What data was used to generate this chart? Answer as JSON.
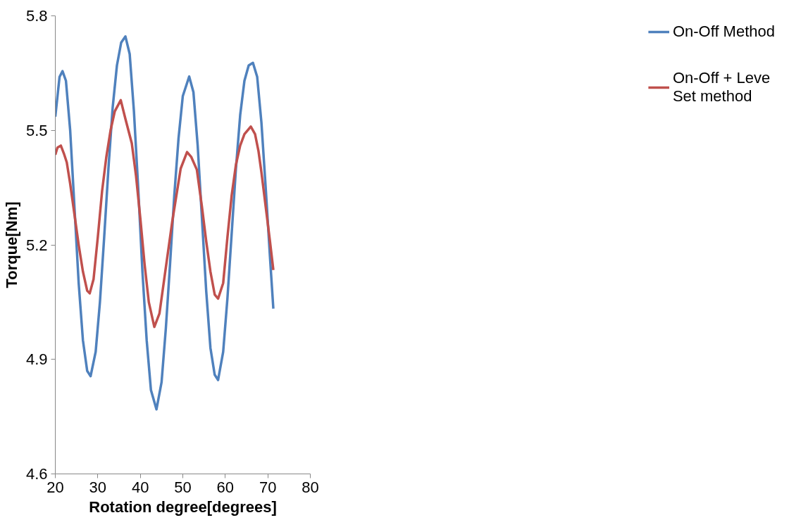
{
  "chart_data": {
    "type": "line",
    "xlabel": "Rotation degree[degrees]",
    "ylabel": "Torque[Nm]",
    "xlim": [
      20,
      80
    ],
    "xticks": [
      20,
      30,
      40,
      50,
      60,
      70,
      80
    ],
    "ylim": [
      4.6,
      5.8
    ],
    "yticks": [
      4.6,
      4.9,
      5.2,
      5.5,
      5.8
    ],
    "grid": false,
    "legend": "right",
    "marker": "none",
    "line_style": "solid",
    "series": [
      {
        "name": "On-Off Method",
        "color": "#4f81bd",
        "x": [
          20,
          21,
          21.7,
          22.5,
          23.5,
          24.5,
          25.5,
          26.5,
          27.5,
          28.3,
          29.5,
          30.5,
          31.5,
          32.5,
          33.5,
          34.5,
          35.5,
          36.5,
          37.5,
          38.5,
          39.5,
          40.5,
          41.5,
          42.5,
          43.8,
          45,
          46,
          47,
          48,
          49,
          50,
          51.5,
          52.5,
          53.5,
          54.5,
          55.5,
          56.5,
          57.5,
          58.3,
          59.5,
          60.5,
          61.5,
          62.5,
          63.5,
          64.5,
          65.5,
          66.5,
          67.5,
          68.5,
          69.5,
          70.5,
          71.3
        ],
        "values": [
          5.536,
          5.64,
          5.655,
          5.63,
          5.5,
          5.3,
          5.1,
          4.95,
          4.87,
          4.856,
          4.92,
          5.05,
          5.22,
          5.4,
          5.56,
          5.67,
          5.73,
          5.746,
          5.7,
          5.55,
          5.35,
          5.13,
          4.95,
          4.82,
          4.769,
          4.84,
          4.98,
          5.15,
          5.33,
          5.48,
          5.59,
          5.641,
          5.6,
          5.46,
          5.27,
          5.08,
          4.93,
          4.86,
          4.846,
          4.92,
          5.06,
          5.23,
          5.4,
          5.54,
          5.63,
          5.67,
          5.677,
          5.64,
          5.52,
          5.35,
          5.17,
          5.033
        ]
      },
      {
        "name": "On-Off + Leve Set method",
        "color": "#c0504d",
        "x": [
          20,
          20.5,
          21.3,
          22,
          22.7,
          23.5,
          24.5,
          25.5,
          26.5,
          27.5,
          28.1,
          29,
          30,
          31,
          32,
          33,
          34,
          35.4,
          36.5,
          38,
          39,
          40,
          41,
          42,
          43.3,
          44.5,
          45.5,
          46.5,
          47.5,
          48.5,
          49.5,
          51,
          52,
          53.3,
          54.5,
          55.5,
          56.5,
          57.5,
          58.3,
          59.5,
          60.5,
          61.5,
          62.5,
          63.5,
          64.5,
          66,
          67,
          67.8,
          68.5,
          69.5,
          70.5,
          71.3
        ],
        "values": [
          5.436,
          5.455,
          5.46,
          5.44,
          5.416,
          5.36,
          5.28,
          5.2,
          5.13,
          5.08,
          5.073,
          5.11,
          5.22,
          5.34,
          5.43,
          5.5,
          5.55,
          5.579,
          5.53,
          5.466,
          5.38,
          5.27,
          5.15,
          5.05,
          4.985,
          5.02,
          5.1,
          5.18,
          5.26,
          5.33,
          5.4,
          5.443,
          5.43,
          5.397,
          5.3,
          5.21,
          5.13,
          5.07,
          5.059,
          5.1,
          5.22,
          5.33,
          5.41,
          5.46,
          5.49,
          5.51,
          5.49,
          5.446,
          5.39,
          5.3,
          5.21,
          5.134
        ]
      }
    ]
  }
}
